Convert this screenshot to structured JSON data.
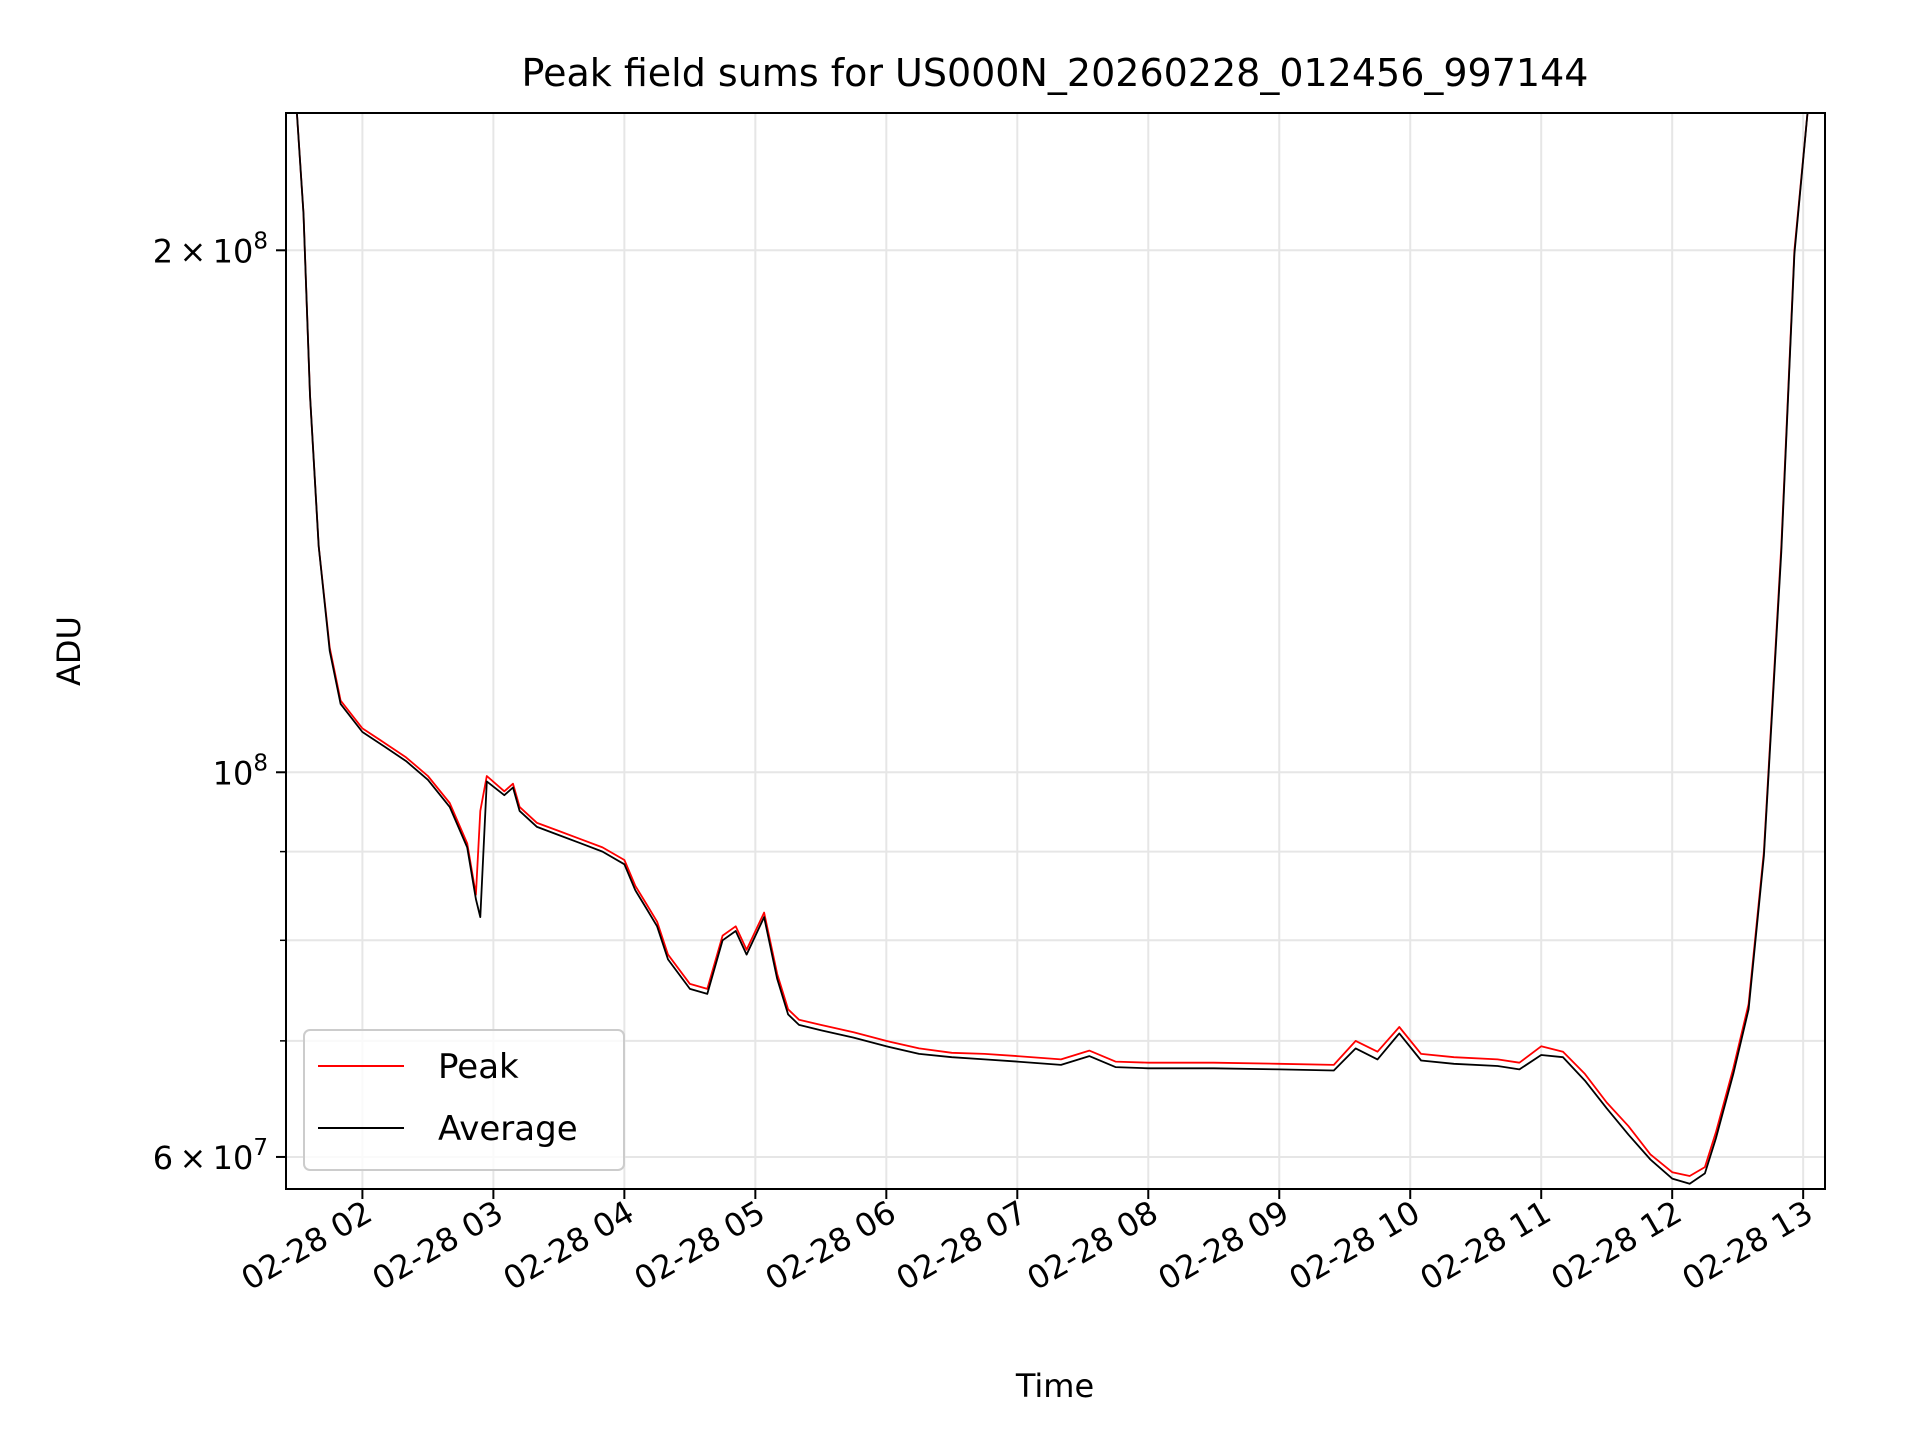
{
  "chart_data": {
    "type": "line",
    "title": "Peak field sums for US000N_20260228_012456_997144",
    "xlabel": "Time",
    "ylabel": "ADU",
    "yscale": "log",
    "grid": true,
    "legend_position": "lower-left",
    "xlim": [
      "2026-02-28 01:25",
      "2026-02-28 13:10"
    ],
    "ylim": [
      57500000,
      240000000
    ],
    "x_ticks": [
      {
        "value": "2026-02-28 02:00",
        "label": "02-28 02"
      },
      {
        "value": "2026-02-28 03:00",
        "label": "02-28 03"
      },
      {
        "value": "2026-02-28 04:00",
        "label": "02-28 04"
      },
      {
        "value": "2026-02-28 05:00",
        "label": "02-28 05"
      },
      {
        "value": "2026-02-28 06:00",
        "label": "02-28 06"
      },
      {
        "value": "2026-02-28 07:00",
        "label": "02-28 07"
      },
      {
        "value": "2026-02-28 08:00",
        "label": "02-28 08"
      },
      {
        "value": "2026-02-28 09:00",
        "label": "02-28 09"
      },
      {
        "value": "2026-02-28 10:00",
        "label": "02-28 10"
      },
      {
        "value": "2026-02-28 11:00",
        "label": "02-28 11"
      },
      {
        "value": "2026-02-28 12:00",
        "label": "02-28 12"
      },
      {
        "value": "2026-02-28 13:00",
        "label": "02-28 13"
      }
    ],
    "y_major_ticks": [
      {
        "value": 60000000,
        "mantissa": "6",
        "base": "10",
        "exp": "7"
      },
      {
        "value": 100000000,
        "mantissa": "",
        "base": "10",
        "exp": "8"
      },
      {
        "value": 200000000,
        "mantissa": "2",
        "base": "10",
        "exp": "8"
      }
    ],
    "y_minor_ticks": [
      70000000,
      80000000,
      90000000
    ],
    "series": [
      {
        "name": "Peak",
        "color": "#ff0000",
        "x": [
          "2026-02-28 01:30",
          "2026-02-28 01:33",
          "2026-02-28 01:36",
          "2026-02-28 01:40",
          "2026-02-28 01:45",
          "2026-02-28 01:50",
          "2026-02-28 02:00",
          "2026-02-28 02:10",
          "2026-02-28 02:20",
          "2026-02-28 02:30",
          "2026-02-28 02:40",
          "2026-02-28 02:48",
          "2026-02-28 02:52",
          "2026-02-28 02:54",
          "2026-02-28 02:57",
          "2026-02-28 03:05",
          "2026-02-28 03:09",
          "2026-02-28 03:12",
          "2026-02-28 03:20",
          "2026-02-28 03:30",
          "2026-02-28 03:40",
          "2026-02-28 03:50",
          "2026-02-28 04:00",
          "2026-02-28 04:05",
          "2026-02-28 04:10",
          "2026-02-28 04:15",
          "2026-02-28 04:20",
          "2026-02-28 04:30",
          "2026-02-28 04:38",
          "2026-02-28 04:45",
          "2026-02-28 04:51",
          "2026-02-28 04:56",
          "2026-02-28 05:04",
          "2026-02-28 05:10",
          "2026-02-28 05:15",
          "2026-02-28 05:20",
          "2026-02-28 05:30",
          "2026-02-28 05:45",
          "2026-02-28 06:00",
          "2026-02-28 06:15",
          "2026-02-28 06:30",
          "2026-02-28 06:45",
          "2026-02-28 07:00",
          "2026-02-28 07:20",
          "2026-02-28 07:33",
          "2026-02-28 07:45",
          "2026-02-28 08:00",
          "2026-02-28 08:30",
          "2026-02-28 09:00",
          "2026-02-28 09:25",
          "2026-02-28 09:35",
          "2026-02-28 09:45",
          "2026-02-28 09:55",
          "2026-02-28 10:05",
          "2026-02-28 10:20",
          "2026-02-28 10:40",
          "2026-02-28 10:50",
          "2026-02-28 11:00",
          "2026-02-28 11:10",
          "2026-02-28 11:20",
          "2026-02-28 11:30",
          "2026-02-28 11:40",
          "2026-02-28 11:50",
          "2026-02-28 12:00",
          "2026-02-28 12:08",
          "2026-02-28 12:15",
          "2026-02-28 12:20",
          "2026-02-28 12:28",
          "2026-02-28 12:35",
          "2026-02-28 12:42",
          "2026-02-28 12:50",
          "2026-02-28 12:56",
          "2026-02-28 13:02"
        ],
        "values": [
          240000000,
          210000000,
          165000000,
          135000000,
          118000000,
          110000000,
          106000000,
          104000000,
          102000000,
          99500000,
          96000000,
          91000000,
          85000000,
          95000000,
          99500000,
          97500000,
          98500000,
          95500000,
          93500000,
          92500000,
          91500000,
          90500000,
          89000000,
          86000000,
          84000000,
          82000000,
          78500000,
          75500000,
          75000000,
          80500000,
          81500000,
          79000000,
          83000000,
          76500000,
          73000000,
          72000000,
          71500000,
          70800000,
          70000000,
          69300000,
          68900000,
          68800000,
          68600000,
          68300000,
          69100000,
          68100000,
          68000000,
          68000000,
          67900000,
          67800000,
          70000000,
          69000000,
          71300000,
          68800000,
          68500000,
          68300000,
          68000000,
          69500000,
          69000000,
          67000000,
          64500000,
          62500000,
          60200000,
          58800000,
          58500000,
          59200000,
          62000000,
          67500000,
          73500000,
          90000000,
          135000000,
          200000000,
          240000000
        ]
      },
      {
        "name": "Average",
        "color": "#000000",
        "x": [
          "2026-02-28 01:30",
          "2026-02-28 01:33",
          "2026-02-28 01:36",
          "2026-02-28 01:40",
          "2026-02-28 01:45",
          "2026-02-28 01:50",
          "2026-02-28 02:00",
          "2026-02-28 02:10",
          "2026-02-28 02:20",
          "2026-02-28 02:30",
          "2026-02-28 02:40",
          "2026-02-28 02:48",
          "2026-02-28 02:52",
          "2026-02-28 02:54",
          "2026-02-28 02:57",
          "2026-02-28 03:05",
          "2026-02-28 03:09",
          "2026-02-28 03:12",
          "2026-02-28 03:20",
          "2026-02-28 03:30",
          "2026-02-28 03:40",
          "2026-02-28 03:50",
          "2026-02-28 04:00",
          "2026-02-28 04:05",
          "2026-02-28 04:10",
          "2026-02-28 04:15",
          "2026-02-28 04:20",
          "2026-02-28 04:30",
          "2026-02-28 04:38",
          "2026-02-28 04:45",
          "2026-02-28 04:51",
          "2026-02-28 04:56",
          "2026-02-28 05:04",
          "2026-02-28 05:10",
          "2026-02-28 05:15",
          "2026-02-28 05:20",
          "2026-02-28 05:30",
          "2026-02-28 05:45",
          "2026-02-28 06:00",
          "2026-02-28 06:15",
          "2026-02-28 06:30",
          "2026-02-28 06:45",
          "2026-02-28 07:00",
          "2026-02-28 07:20",
          "2026-02-28 07:33",
          "2026-02-28 07:45",
          "2026-02-28 08:00",
          "2026-02-28 08:30",
          "2026-02-28 09:00",
          "2026-02-28 09:25",
          "2026-02-28 09:35",
          "2026-02-28 09:45",
          "2026-02-28 09:55",
          "2026-02-28 10:05",
          "2026-02-28 10:20",
          "2026-02-28 10:40",
          "2026-02-28 10:50",
          "2026-02-28 11:00",
          "2026-02-28 11:10",
          "2026-02-28 11:20",
          "2026-02-28 11:30",
          "2026-02-28 11:40",
          "2026-02-28 11:50",
          "2026-02-28 12:00",
          "2026-02-28 12:08",
          "2026-02-28 12:15",
          "2026-02-28 12:20",
          "2026-02-28 12:28",
          "2026-02-28 12:35",
          "2026-02-28 12:42",
          "2026-02-28 12:50",
          "2026-02-28 12:56",
          "2026-02-28 13:02"
        ],
        "values": [
          240000000,
          210000000,
          165000000,
          135000000,
          117500000,
          109500000,
          105500000,
          103500000,
          101500000,
          99000000,
          95500000,
          90500000,
          84500000,
          82500000,
          98800000,
          97000000,
          98000000,
          95000000,
          93000000,
          92000000,
          91000000,
          90000000,
          88500000,
          85500000,
          83500000,
          81500000,
          78000000,
          75000000,
          74500000,
          80000000,
          81000000,
          78500000,
          82500000,
          76000000,
          72500000,
          71500000,
          71000000,
          70300000,
          69500000,
          68800000,
          68500000,
          68300000,
          68100000,
          67800000,
          68600000,
          67600000,
          67500000,
          67500000,
          67400000,
          67300000,
          69300000,
          68300000,
          70700000,
          68200000,
          67900000,
          67700000,
          67400000,
          68700000,
          68500000,
          66400000,
          64000000,
          61800000,
          59800000,
          58300000,
          57900000,
          58700000,
          61500000,
          67000000,
          73000000,
          89500000,
          134000000,
          199000000,
          240000000
        ]
      }
    ]
  }
}
